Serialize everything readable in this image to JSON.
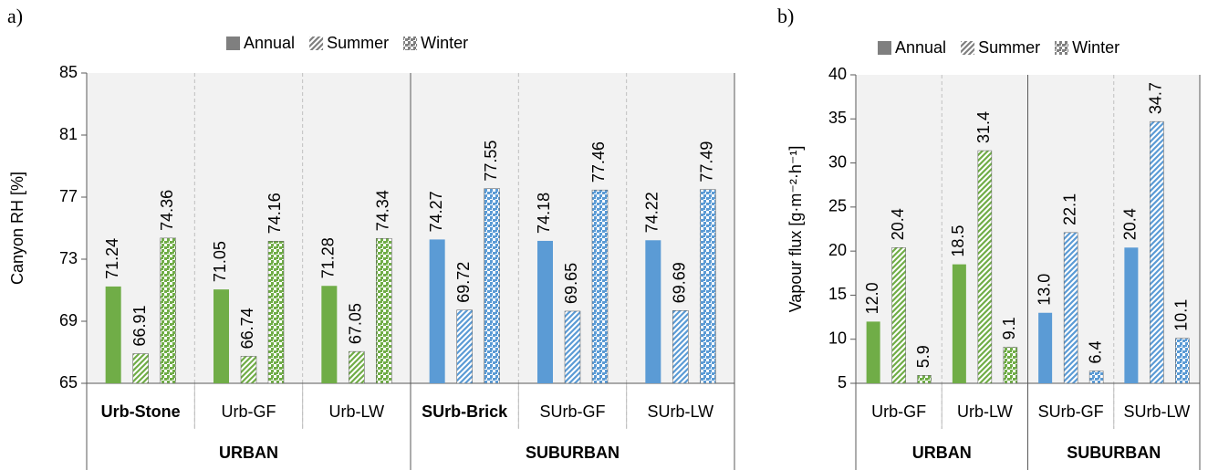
{
  "chart_data": [
    {
      "type": "bar",
      "panel_label": "a)",
      "y_label": "Canyon RH [%]",
      "categories": [
        "Urb-Stone",
        "Urb-GF",
        "Urb-LW",
        "SUrb-Brick",
        "SUrb-GF",
        "SUrb-LW"
      ],
      "category_bold": [
        true,
        false,
        false,
        true,
        false,
        false
      ],
      "bar_colors": [
        "#70ad47",
        "#70ad47",
        "#70ad47",
        "#5b9bd5",
        "#5b9bd5",
        "#5b9bd5"
      ],
      "groups": [
        {
          "name": "URBAN",
          "count": 3
        },
        {
          "name": "SUBURBAN",
          "count": 3
        }
      ],
      "series": [
        {
          "name": "Annual",
          "color": "#7f7f7f",
          "pattern": "solid",
          "values": [
            71.24,
            71.05,
            71.28,
            74.27,
            74.18,
            74.22
          ]
        },
        {
          "name": "Summer",
          "color": "#7f7f7f",
          "pattern": "stripes",
          "values": [
            66.91,
            66.74,
            67.05,
            69.72,
            69.65,
            69.69
          ]
        },
        {
          "name": "Winter",
          "color": "#7f7f7f",
          "pattern": "dots",
          "values": [
            74.36,
            74.16,
            74.34,
            77.55,
            77.46,
            77.49
          ]
        }
      ],
      "ylim": [
        65,
        85
      ],
      "yticks": [
        65,
        69,
        73,
        77,
        81,
        85
      ]
    },
    {
      "type": "bar",
      "panel_label": "b)",
      "y_label": "Vapour flux [g·m⁻²·h⁻¹]",
      "categories": [
        "Urb-GF",
        "Urb-LW",
        "SUrb-GF",
        "SUrb-LW"
      ],
      "category_bold": [
        false,
        false,
        false,
        false
      ],
      "bar_colors": [
        "#70ad47",
        "#70ad47",
        "#5b9bd5",
        "#5b9bd5"
      ],
      "groups": [
        {
          "name": "URBAN",
          "count": 2
        },
        {
          "name": "SUBURBAN",
          "count": 2
        }
      ],
      "series": [
        {
          "name": "Annual",
          "color": "#7f7f7f",
          "pattern": "solid",
          "values": [
            12.0,
            18.5,
            13.0,
            20.4
          ],
          "value_labels": [
            "12.0",
            "18.5",
            "13.0",
            "20.4"
          ]
        },
        {
          "name": "Summer",
          "color": "#7f7f7f",
          "pattern": "stripes",
          "values": [
            20.4,
            31.4,
            22.1,
            34.7
          ],
          "value_labels": [
            "20.4",
            "31.4",
            "22.1",
            "34.7"
          ]
        },
        {
          "name": "Winter",
          "color": "#7f7f7f",
          "pattern": "dots",
          "values": [
            5.9,
            9.1,
            6.4,
            10.1
          ],
          "value_labels": [
            "5.9",
            "9.1",
            "6.4",
            "10.1"
          ]
        }
      ],
      "ylim": [
        5,
        40
      ],
      "yticks": [
        5,
        10,
        15,
        20,
        25,
        30,
        35,
        40
      ]
    }
  ]
}
